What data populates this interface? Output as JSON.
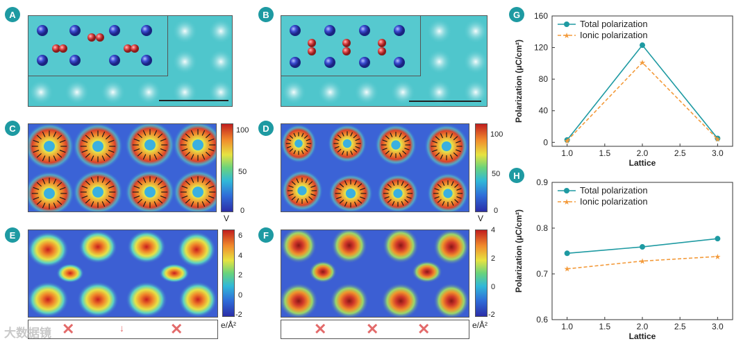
{
  "panels": {
    "a": "A",
    "b": "B",
    "c": "C",
    "d": "D",
    "e": "E",
    "f": "F",
    "g": "G",
    "h": "H"
  },
  "colorbar_cd": {
    "ticks": [
      "100",
      "50",
      "0"
    ],
    "unit": "V"
  },
  "colorbar_e": {
    "ticks": [
      "6",
      "4",
      "2",
      "0",
      "-2"
    ],
    "unit": "e/Å²"
  },
  "colorbar_f": {
    "ticks": [
      "4",
      "2",
      "0",
      "-2"
    ],
    "unit": "e/Å²"
  },
  "watermark": "大数据镜",
  "colors": {
    "teal": "#1e9aa2",
    "orange": "#f39a3a",
    "cross": "#e36a6a"
  },
  "chart_data": [
    {
      "type": "line",
      "panel": "G",
      "x": [
        1.0,
        2.0,
        3.0
      ],
      "series": [
        {
          "name": "Total polarization",
          "values": [
            3,
            123,
            5
          ],
          "marker": "circle",
          "style": "solid"
        },
        {
          "name": "Ionic polarization",
          "values": [
            2,
            101,
            4
          ],
          "marker": "star",
          "style": "dashed"
        }
      ],
      "xlabel": "Lattice",
      "ylabel": "Polarization (μC/cm²)",
      "xlim": [
        0.8,
        3.2
      ],
      "ylim": [
        -5,
        160
      ],
      "xticks": [
        "1.0",
        "1.5",
        "2.0",
        "2.5",
        "3.0"
      ],
      "yticks": [
        "0",
        "40",
        "80",
        "120",
        "160"
      ],
      "legend": "top-left"
    },
    {
      "type": "line",
      "panel": "H",
      "x": [
        1.0,
        2.0,
        3.0
      ],
      "series": [
        {
          "name": "Total polarization",
          "values": [
            0.745,
            0.759,
            0.777
          ],
          "marker": "circle",
          "style": "solid"
        },
        {
          "name": "Ionic polarization",
          "values": [
            0.711,
            0.728,
            0.738
          ],
          "marker": "star",
          "style": "dashed"
        }
      ],
      "xlabel": "Lattice",
      "ylabel": "Polarization (μC/cm²)",
      "xlim": [
        0.8,
        3.2
      ],
      "ylim": [
        0.6,
        0.9
      ],
      "xticks": [
        "1.0",
        "1.5",
        "2.0",
        "2.5",
        "3.0"
      ],
      "yticks": [
        "0.6",
        "0.7",
        "0.8",
        "0.9"
      ],
      "legend": "top-left"
    }
  ]
}
